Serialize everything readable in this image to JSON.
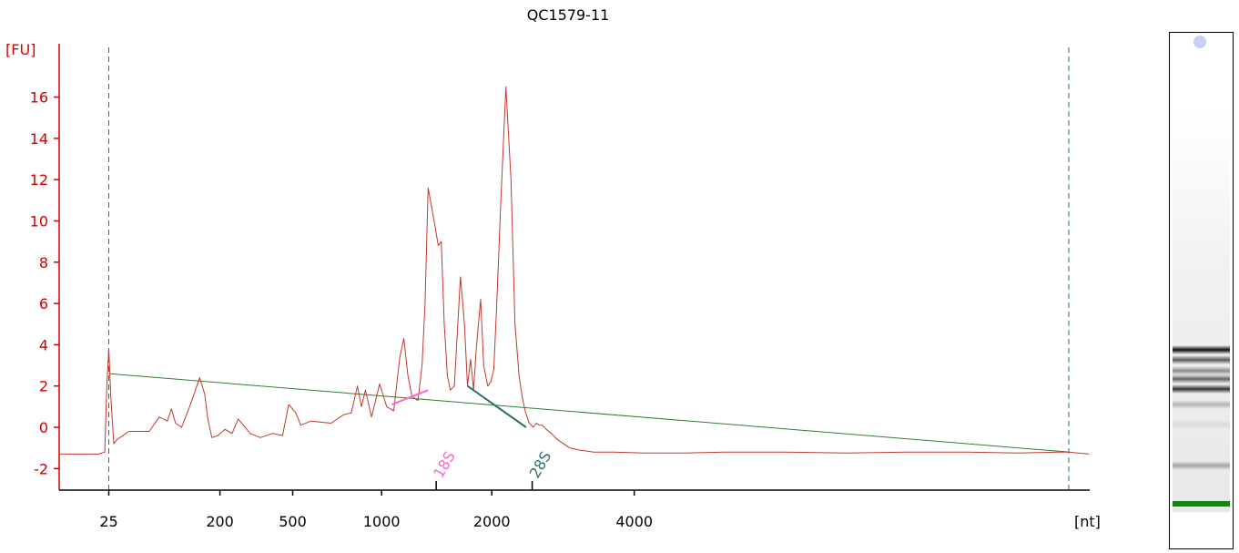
{
  "chart_data": {
    "type": "line",
    "title": "QC1579-11",
    "ylabel": "[FU]",
    "xlabel": "[nt]",
    "ylim": [
      -3,
      18
    ],
    "y_ticks": [
      -2,
      0,
      2,
      4,
      6,
      8,
      10,
      12,
      14,
      16
    ],
    "y_tick_labels": [
      "-2",
      "0",
      "2",
      "4",
      "6",
      "8",
      "10",
      "12",
      "14",
      "16"
    ],
    "x_ticks": [
      {
        "label": "25",
        "t": 0.05
      },
      {
        "label": "200",
        "t": 0.16
      },
      {
        "label": "500",
        "t": 0.232
      },
      {
        "label": "1000",
        "t": 0.32
      },
      {
        "label": "2000",
        "t": 0.429
      },
      {
        "label": "4000",
        "t": 0.57
      }
    ],
    "x_range": [
      0,
      1
    ],
    "marker_ticks": [
      {
        "label": "18S",
        "t": 0.374,
        "color": "#ff66cc"
      },
      {
        "label": "28S",
        "t": 0.469,
        "color": "#2f6f6f"
      }
    ],
    "series": [
      {
        "color": "#c0392b",
        "x": [
          0.0,
          0.04,
          0.046,
          0.048,
          0.05,
          0.052,
          0.055,
          0.058,
          0.07,
          0.09,
          0.1,
          0.108,
          0.112,
          0.116,
          0.122,
          0.13,
          0.14,
          0.145,
          0.148,
          0.152,
          0.158,
          0.165,
          0.172,
          0.178,
          0.19,
          0.2,
          0.212,
          0.222,
          0.228,
          0.235,
          0.24,
          0.25,
          0.27,
          0.282,
          0.29,
          0.296,
          0.3,
          0.304,
          0.31,
          0.318,
          0.325,
          0.332,
          0.338,
          0.342,
          0.346,
          0.35,
          0.356,
          0.36,
          0.363,
          0.366,
          0.372,
          0.376,
          0.379,
          0.382,
          0.385,
          0.388,
          0.392,
          0.398,
          0.402,
          0.405,
          0.408,
          0.411,
          0.414,
          0.418,
          0.421,
          0.425,
          0.428,
          0.431,
          0.434,
          0.438,
          0.443,
          0.448,
          0.452,
          0.456,
          0.459,
          0.462,
          0.464,
          0.466,
          0.468,
          0.47,
          0.473,
          0.476,
          0.479,
          0.483,
          0.488,
          0.494,
          0.5,
          0.506,
          0.515,
          0.53,
          0.55,
          0.58,
          0.62,
          0.66,
          0.72,
          0.78,
          0.84,
          0.9,
          0.95,
          0.99,
          1.0,
          1.02
        ],
        "y": [
          -1.3,
          -1.3,
          -1.2,
          2.0,
          3.8,
          1.5,
          -0.8,
          -0.6,
          -0.2,
          -0.2,
          0.5,
          0.3,
          0.9,
          0.2,
          0.0,
          1.0,
          2.4,
          1.6,
          0.4,
          -0.5,
          -0.4,
          -0.1,
          -0.3,
          0.4,
          -0.3,
          -0.5,
          -0.3,
          -0.4,
          1.1,
          0.7,
          0.1,
          0.3,
          0.2,
          0.6,
          0.7,
          2.0,
          1.0,
          1.8,
          0.5,
          2.1,
          1.0,
          0.8,
          3.4,
          4.3,
          2.5,
          1.5,
          1.3,
          3.0,
          6.0,
          11.6,
          10.0,
          8.8,
          9.0,
          5.0,
          2.5,
          1.8,
          2.0,
          7.3,
          5.0,
          2.0,
          3.3,
          1.8,
          4.0,
          6.2,
          3.0,
          2.0,
          2.2,
          2.8,
          6.0,
          11.0,
          16.5,
          12.0,
          5.0,
          2.5,
          1.5,
          0.8,
          0.5,
          0.2,
          0.1,
          0.0,
          0.2,
          0.1,
          0.1,
          -0.1,
          -0.3,
          -0.6,
          -0.8,
          -1.0,
          -1.1,
          -1.2,
          -1.2,
          -1.25,
          -1.25,
          -1.2,
          -1.2,
          -1.25,
          -1.2,
          -1.2,
          -1.25,
          -1.2,
          -1.2,
          -1.3
        ]
      }
    ],
    "baseline": {
      "color": "#2e7d32",
      "x1": 0.05,
      "y1": 2.6,
      "x2": 1.0,
      "y2": -1.2
    },
    "fragments": [
      {
        "color": "#ff66cc",
        "x1": 0.33,
        "y1": 1.1,
        "x2": 0.366,
        "y2": 1.8
      },
      {
        "color": "#2f6f6f",
        "x1": 0.405,
        "y1": 2.0,
        "x2": 0.463,
        "y2": 0.0
      }
    ],
    "dashed_lines": [
      {
        "color": "#2e7d32",
        "t": 0.05
      },
      {
        "color": "#2e7d32",
        "t": 1.0
      }
    ]
  },
  "gel": {
    "bands": [
      {
        "pos": 0.615,
        "intensity": 0.95
      },
      {
        "pos": 0.635,
        "intensity": 0.65
      },
      {
        "pos": 0.655,
        "intensity": 0.45
      },
      {
        "pos": 0.672,
        "intensity": 0.6
      },
      {
        "pos": 0.69,
        "intensity": 0.8
      },
      {
        "pos": 0.72,
        "intensity": 0.3
      },
      {
        "pos": 0.76,
        "intensity": 0.15
      },
      {
        "pos": 0.84,
        "intensity": 0.35
      }
    ],
    "marker_color": "#118811",
    "blob_color": "#c8d0f5"
  }
}
